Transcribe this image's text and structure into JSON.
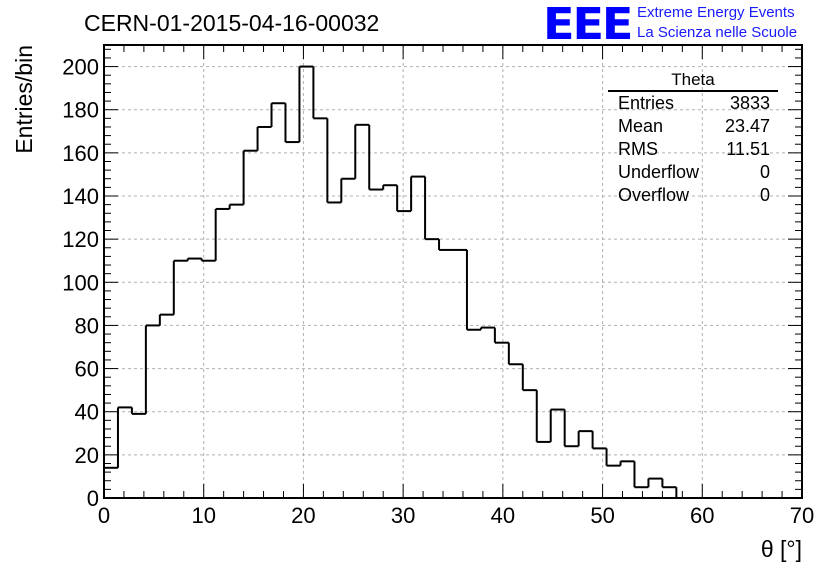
{
  "title": "CERN-01-2015-04-16-00032",
  "brand": {
    "logo": "EEE",
    "line1": "Extreme Energy Events",
    "line2": "La Scienza nelle Scuole",
    "color": "#0000ff"
  },
  "stats": {
    "title": "Theta",
    "rows": [
      {
        "label": "Entries",
        "value": "3833"
      },
      {
        "label": "Mean",
        "value": "23.47"
      },
      {
        "label": "RMS",
        "value": "11.51"
      },
      {
        "label": "Underflow",
        "value": "0"
      },
      {
        "label": "Overflow",
        "value": "0"
      }
    ]
  },
  "chart_data": {
    "type": "histogram",
    "xlabel": "θ [°]",
    "ylabel": "Entries/bin",
    "xlim": [
      0,
      70
    ],
    "ylim": [
      0,
      210
    ],
    "grid": true,
    "bin_width": 1.4,
    "x_ticks": [
      0,
      10,
      20,
      30,
      40,
      50,
      60,
      70
    ],
    "y_ticks": [
      0,
      20,
      40,
      60,
      80,
      100,
      120,
      140,
      160,
      180,
      200
    ],
    "values": [
      14,
      42,
      39,
      80,
      85,
      110,
      111,
      110,
      134,
      136,
      161,
      172,
      183,
      165,
      200,
      176,
      137,
      148,
      173,
      143,
      145,
      133,
      149,
      120,
      115,
      115,
      78,
      79,
      72,
      62,
      50,
      26,
      41,
      24,
      31,
      23,
      15,
      17,
      5,
      9,
      5,
      0,
      0,
      0,
      0,
      0,
      0,
      0,
      0,
      0
    ]
  }
}
